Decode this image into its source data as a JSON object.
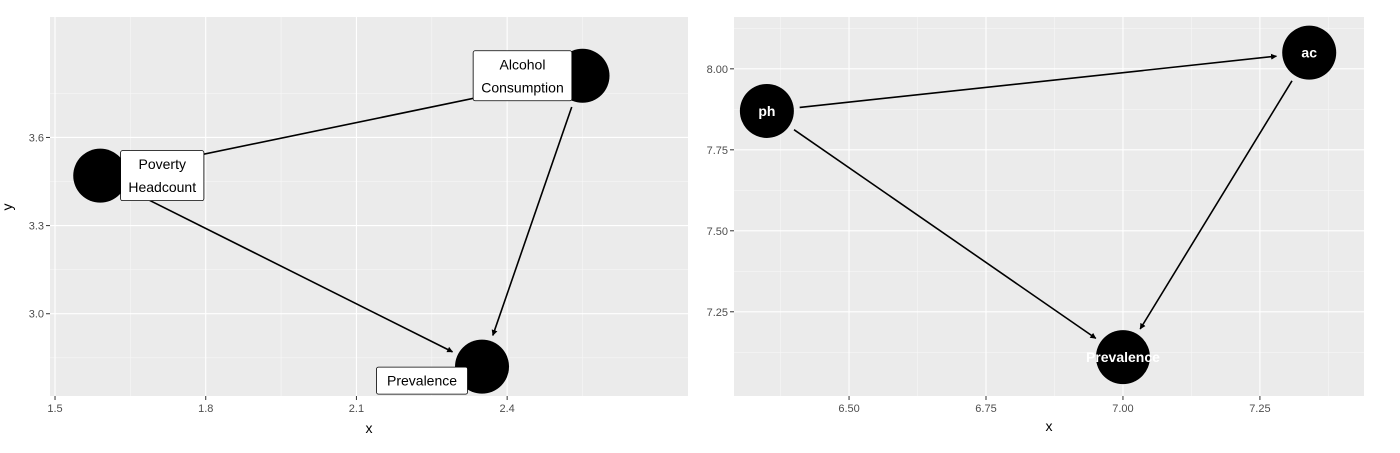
{
  "chart_data": [
    {
      "type": "network",
      "xlabel": "x",
      "ylabel": "y",
      "xlim": [
        1.49,
        2.76
      ],
      "ylim": [
        2.72,
        4.01
      ],
      "xticks": [
        1.5,
        1.8,
        2.1,
        2.4
      ],
      "xtick_labels": [
        "1.5",
        "1.8",
        "2.1",
        "2.4"
      ],
      "yticks": [
        3.0,
        3.3,
        3.6
      ],
      "ytick_labels": [
        "3.0",
        "3.3",
        "3.6"
      ],
      "grid": true,
      "nodes": [
        {
          "id": "ph",
          "x": 1.59,
          "y": 3.47,
          "label_lines": [
            "Poverty",
            "Headcount"
          ]
        },
        {
          "id": "ac",
          "x": 2.55,
          "y": 3.81,
          "label_lines": [
            "Alcohol",
            "Consumption"
          ]
        },
        {
          "id": "prev",
          "x": 2.35,
          "y": 2.82,
          "label_lines": [
            "Prevalence"
          ]
        }
      ],
      "edges": [
        {
          "from": "ph",
          "to": "ac",
          "arrow": false
        },
        {
          "from": "ph",
          "to": "prev",
          "arrow": true
        },
        {
          "from": "ac",
          "to": "prev",
          "arrow": true
        }
      ]
    },
    {
      "type": "network",
      "xlabel": "x",
      "ylabel": "",
      "xlim": [
        6.29,
        7.44
      ],
      "ylim": [
        6.99,
        8.16
      ],
      "xticks": [
        6.5,
        6.75,
        7.0,
        7.25
      ],
      "xtick_labels": [
        "6.50",
        "6.75",
        "7.00",
        "7.25"
      ],
      "yticks": [
        7.25,
        7.5,
        7.75,
        8.0
      ],
      "ytick_labels": [
        "7.25",
        "7.50",
        "7.75",
        "8.00"
      ],
      "grid": true,
      "nodes": [
        {
          "id": "ph",
          "x": 6.35,
          "y": 7.87,
          "label": "ph"
        },
        {
          "id": "ac",
          "x": 7.34,
          "y": 8.05,
          "label": "ac"
        },
        {
          "id": "prev",
          "x": 7.0,
          "y": 7.11,
          "label": "Prevalence"
        }
      ],
      "edges": [
        {
          "from": "ph",
          "to": "ac",
          "arrow": true
        },
        {
          "from": "ph",
          "to": "prev",
          "arrow": true
        },
        {
          "from": "ac",
          "to": "prev",
          "arrow": true
        }
      ]
    }
  ]
}
